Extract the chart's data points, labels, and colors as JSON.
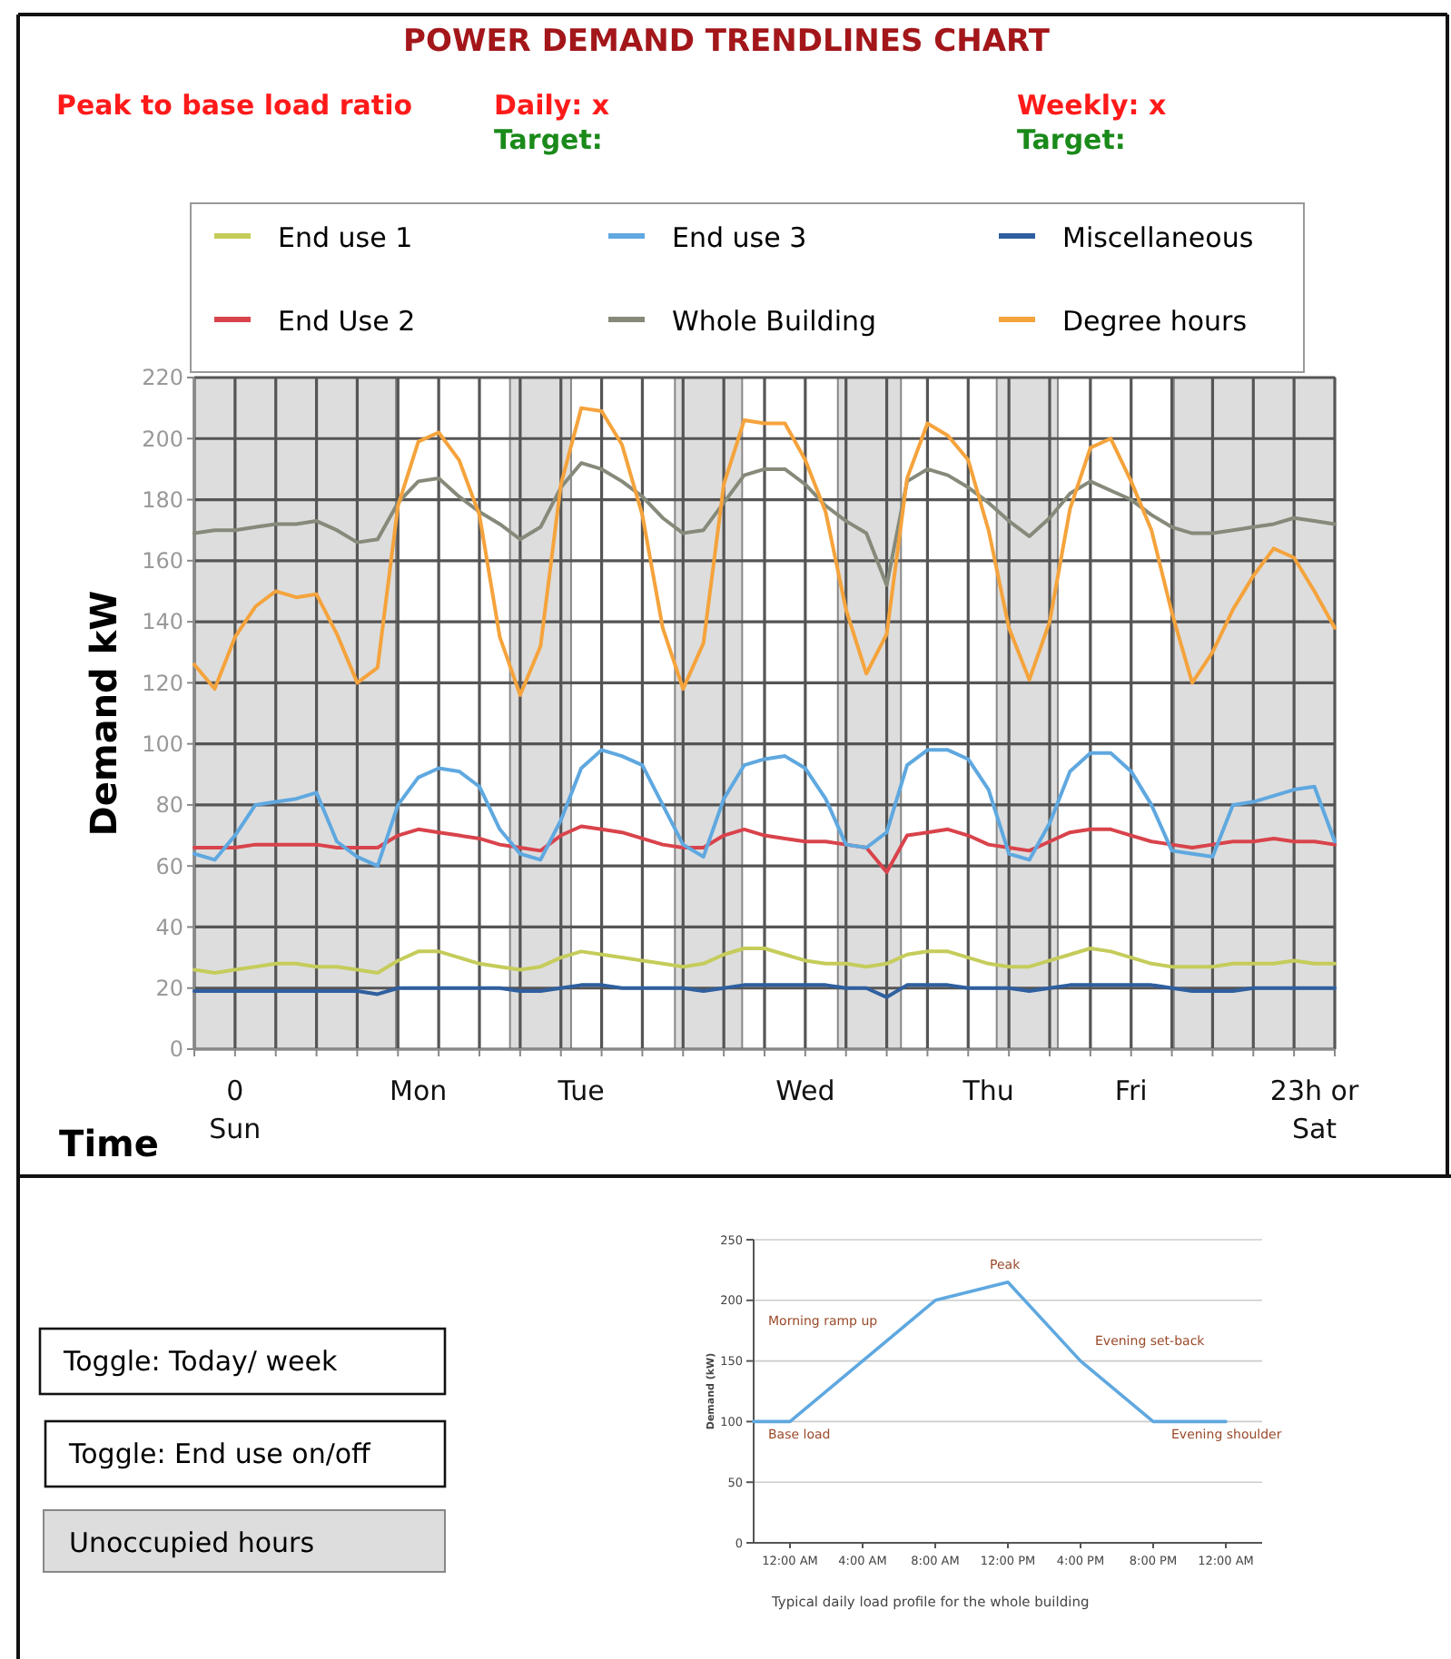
{
  "chart_data": [
    {
      "type": "line",
      "title": "POWER DEMAND TRENDLINES CHART",
      "xlabel": "Time",
      "ylabel": "Demand kW",
      "ylim": [
        0,
        220
      ],
      "yticks": [
        0,
        20,
        40,
        60,
        80,
        100,
        120,
        140,
        160,
        180,
        200,
        220
      ],
      "categories": [
        null,
        null,
        "0\nSun",
        null,
        null,
        null,
        null,
        null,
        null,
        null,
        null,
        "Mon",
        null,
        null,
        null,
        null,
        null,
        null,
        null,
        "Tue",
        null,
        null,
        null,
        null,
        null,
        null,
        null,
        null,
        null,
        null,
        "Wed",
        null,
        null,
        null,
        null,
        null,
        null,
        null,
        null,
        "Thu",
        null,
        null,
        null,
        null,
        null,
        null,
        "Fri",
        null,
        null,
        null,
        null,
        null,
        null,
        null,
        null,
        "23h or\nSat",
        null
      ],
      "grid": true,
      "legend": "top",
      "annotations": [
        "Peak to base load ratio",
        "Daily: x",
        "Target:",
        "Weekly: x",
        "Target:",
        "Toggle: Today/ week",
        "Toggle: End use on/off",
        "Unoccupied hours"
      ],
      "series": [
        {
          "name": "End use 1",
          "color": "#c5cc5a",
          "values": [
            26,
            25,
            26,
            27,
            28,
            28,
            27,
            27,
            26,
            25,
            29,
            32,
            32,
            30,
            28,
            27,
            26,
            27,
            30,
            32,
            31,
            30,
            29,
            28,
            27,
            28,
            31,
            33,
            33,
            31,
            29,
            28,
            28,
            27,
            28,
            31,
            32,
            32,
            30,
            28,
            27,
            27,
            29,
            31,
            33,
            32,
            30,
            28,
            27,
            27,
            27,
            28,
            28,
            28,
            29,
            28,
            28
          ]
        },
        {
          "name": "End Use 2",
          "color": "#d9434b",
          "values": [
            66,
            66,
            66,
            67,
            67,
            67,
            67,
            66,
            66,
            66,
            70,
            72,
            71,
            70,
            69,
            67,
            66,
            65,
            70,
            73,
            72,
            71,
            69,
            67,
            66,
            66,
            70,
            72,
            70,
            69,
            68,
            68,
            67,
            66,
            58,
            70,
            71,
            72,
            70,
            67,
            66,
            65,
            68,
            71,
            72,
            72,
            70,
            68,
            67,
            66,
            67,
            68,
            68,
            69,
            68,
            68,
            67
          ]
        },
        {
          "name": "End use 3",
          "color": "#5fa8e0",
          "values": [
            64,
            62,
            70,
            80,
            81,
            82,
            84,
            68,
            63,
            60,
            80,
            89,
            92,
            91,
            86,
            72,
            64,
            62,
            75,
            92,
            98,
            96,
            93,
            80,
            67,
            63,
            82,
            93,
            95,
            96,
            92,
            82,
            67,
            66,
            71,
            93,
            98,
            98,
            95,
            85,
            64,
            62,
            74,
            91,
            97,
            97,
            91,
            80,
            65,
            64,
            63,
            80,
            81,
            83,
            85,
            86,
            68
          ]
        },
        {
          "name": "Whole Building",
          "color": "#858a7a",
          "values": [
            169,
            170,
            170,
            171,
            172,
            172,
            173,
            170,
            166,
            167,
            179,
            186,
            187,
            181,
            176,
            172,
            167,
            171,
            184,
            192,
            190,
            186,
            181,
            174,
            169,
            170,
            179,
            188,
            190,
            190,
            185,
            178,
            173,
            169,
            152,
            186,
            190,
            188,
            184,
            179,
            173,
            168,
            174,
            182,
            186,
            183,
            180,
            175,
            171,
            169,
            169,
            170,
            171,
            172,
            174,
            173,
            172
          ]
        },
        {
          "name": "Miscellaneous",
          "color": "#2f5f9f",
          "values": [
            19,
            19,
            19,
            19,
            19,
            19,
            19,
            19,
            19,
            18,
            20,
            20,
            20,
            20,
            20,
            20,
            19,
            19,
            20,
            21,
            21,
            20,
            20,
            20,
            20,
            19,
            20,
            21,
            21,
            21,
            21,
            21,
            20,
            20,
            17,
            21,
            21,
            21,
            20,
            20,
            20,
            19,
            20,
            21,
            21,
            21,
            21,
            21,
            20,
            19,
            19,
            19,
            20,
            20,
            20,
            20,
            20
          ]
        },
        {
          "name": "Degree hours",
          "color": "#f5a33c",
          "values": [
            126,
            118,
            135,
            145,
            150,
            148,
            149,
            136,
            120,
            125,
            178,
            199,
            202,
            193,
            175,
            135,
            116,
            132,
            185,
            210,
            209,
            198,
            175,
            138,
            118,
            133,
            185,
            206,
            205,
            205,
            193,
            176,
            144,
            123,
            136,
            187,
            205,
            201,
            193,
            170,
            138,
            121,
            140,
            177,
            197,
            200,
            186,
            170,
            143,
            120,
            130,
            144,
            155,
            164,
            161,
            150,
            138
          ]
        }
      ]
    },
    {
      "type": "line",
      "xlabel": "Typical daily load profile for the whole building",
      "ylabel": "Demand (kW)",
      "xlim": [
        -2,
        26
      ],
      "ylim": [
        0,
        250
      ],
      "yticks": [
        0,
        50,
        100,
        150,
        200,
        250
      ],
      "xticks": [
        {
          "value": 0,
          "label": "12:00 AM"
        },
        {
          "value": 4,
          "label": "4:00 AM"
        },
        {
          "value": 8,
          "label": "8:00 AM"
        },
        {
          "value": 12,
          "label": "12:00 PM"
        },
        {
          "value": 16,
          "label": "4:00 PM"
        },
        {
          "value": 20,
          "label": "8:00 PM"
        },
        {
          "value": 24,
          "label": "12:00 AM"
        }
      ],
      "grid": "y",
      "annotations": [
        "Peak",
        "Morning ramp up",
        "Base load",
        "Evening set-back",
        "Evening shoulder"
      ],
      "series": [
        {
          "color": "#5fa8e0",
          "x": [
            -2,
            0,
            8,
            12,
            16,
            20,
            24
          ],
          "values": [
            100,
            100,
            200,
            215,
            150,
            100,
            100
          ]
        }
      ]
    }
  ]
}
